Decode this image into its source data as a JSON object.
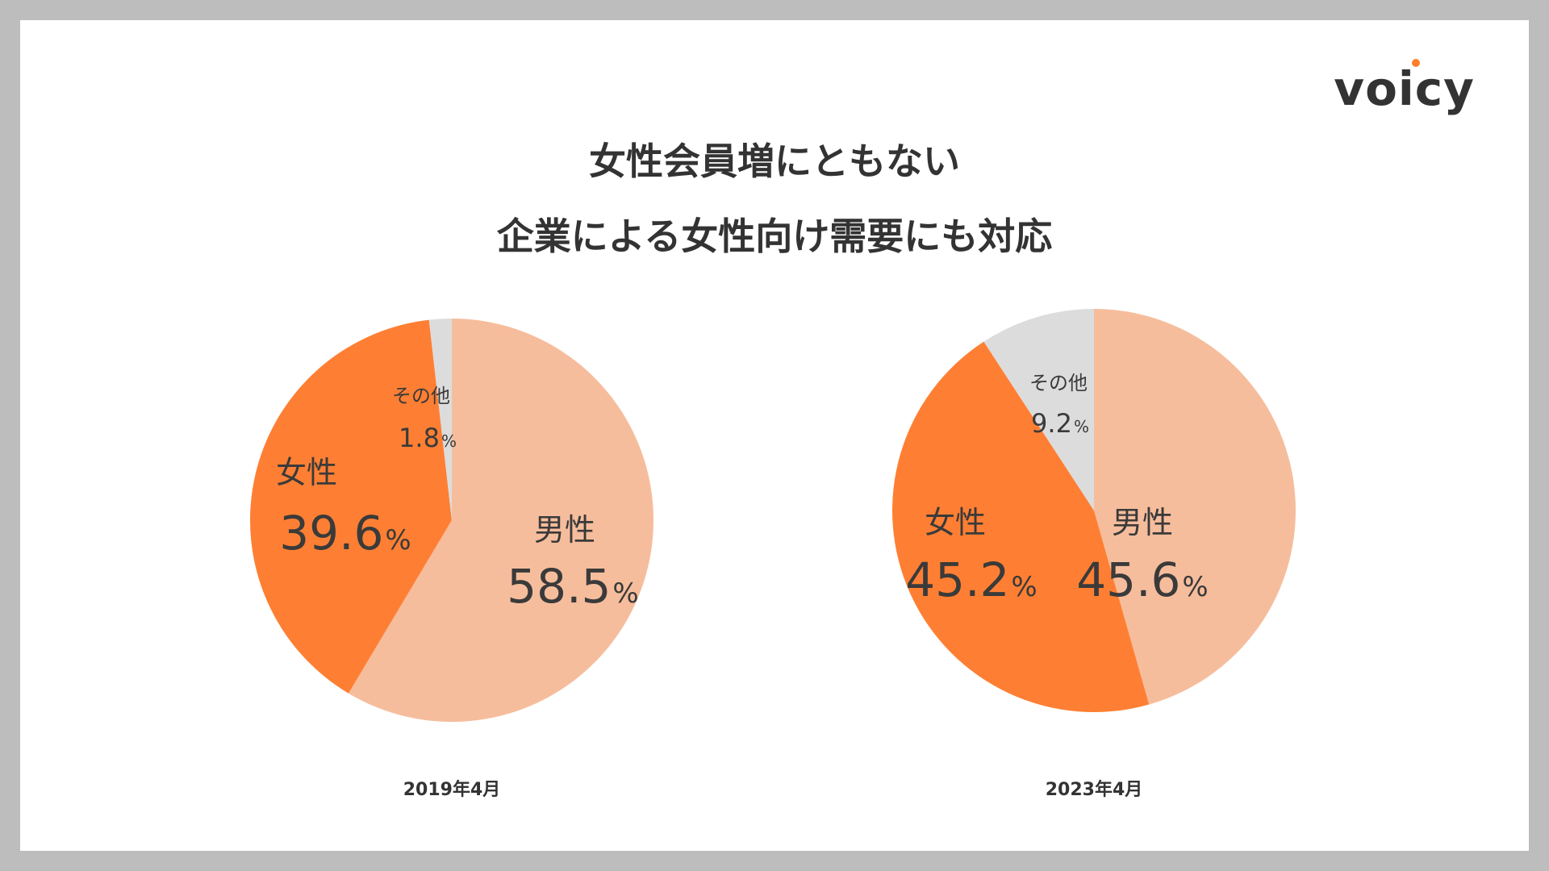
{
  "brand": {
    "logo_text": "voicy",
    "dot_color": "#ff7f2a"
  },
  "title": {
    "line1": "女性会員増にともない",
    "line2": "企業による女性向け需要にも対応"
  },
  "colors": {
    "male": "#f6bd9c",
    "female": "#fe7f33",
    "other": "#dcdcdc",
    "text": "#3a3a3a"
  },
  "chart_data": [
    {
      "type": "pie",
      "caption": "2019年4月",
      "slices": [
        {
          "label": "男性",
          "value": 58.5,
          "unit": "%",
          "color": "#f6bd9c"
        },
        {
          "label": "女性",
          "value": 39.6,
          "unit": "%",
          "color": "#fe7f33"
        },
        {
          "label": "その他",
          "value": 1.8,
          "unit": "%",
          "color": "#dcdcdc"
        }
      ]
    },
    {
      "type": "pie",
      "caption": "2023年4月",
      "slices": [
        {
          "label": "男性",
          "value": 45.6,
          "unit": "%",
          "color": "#f6bd9c"
        },
        {
          "label": "女性",
          "value": 45.2,
          "unit": "%",
          "color": "#fe7f33"
        },
        {
          "label": "その他",
          "value": 9.2,
          "unit": "%",
          "color": "#dcdcdc"
        }
      ]
    }
  ]
}
